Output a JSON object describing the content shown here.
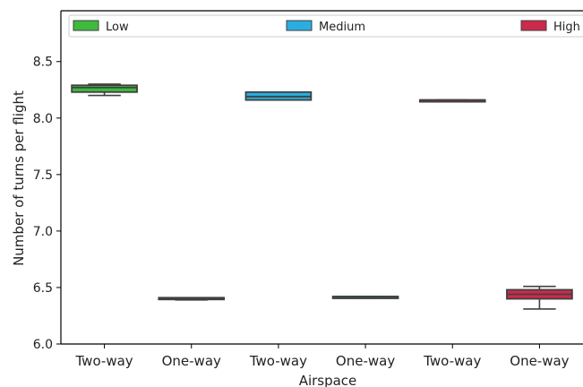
{
  "chart_data": {
    "type": "box",
    "xlabel": "Airspace",
    "ylabel": "Number of turns per flight",
    "ylim": [
      6.0,
      8.95
    ],
    "yticks": [
      6.0,
      6.5,
      7.0,
      7.5,
      8.0,
      8.5
    ],
    "ytick_labels": [
      "6.0",
      "6.5",
      "7.0",
      "7.5",
      "8.0",
      "8.5"
    ],
    "categories": [
      "Two-way",
      "One-way",
      "Two-way",
      "One-way",
      "Two-way",
      "One-way"
    ],
    "legend": {
      "position": "top",
      "entries": [
        "Low",
        "Medium",
        "High"
      ]
    },
    "series": [
      {
        "name": "Low",
        "color": "#3fba3f",
        "boxes": [
          {
            "category_index": 0,
            "whislo": 8.2,
            "q1": 8.23,
            "med": 8.27,
            "q3": 8.29,
            "whishi": 8.3
          },
          {
            "category_index": 1,
            "whislo": 6.39,
            "q1": 6.4,
            "med": 6.405,
            "q3": 6.41,
            "whishi": 6.41
          }
        ]
      },
      {
        "name": "Medium",
        "color": "#2aaee0",
        "boxes": [
          {
            "category_index": 2,
            "whislo": 8.16,
            "q1": 8.16,
            "med": 8.19,
            "q3": 8.23,
            "whishi": 8.23
          },
          {
            "category_index": 3,
            "whislo": 6.42,
            "q1": 6.42,
            "med": 6.42,
            "q3": 6.42,
            "whishi": 6.42
          }
        ]
      },
      {
        "name": "High",
        "color": "#cc2a4a",
        "boxes": [
          {
            "category_index": 4,
            "whislo": 8.16,
            "q1": 8.16,
            "med": 8.16,
            "q3": 8.16,
            "whishi": 8.16
          },
          {
            "category_index": 5,
            "whislo": 6.31,
            "q1": 6.4,
            "med": 6.44,
            "q3": 6.48,
            "whishi": 6.51
          }
        ]
      }
    ]
  }
}
